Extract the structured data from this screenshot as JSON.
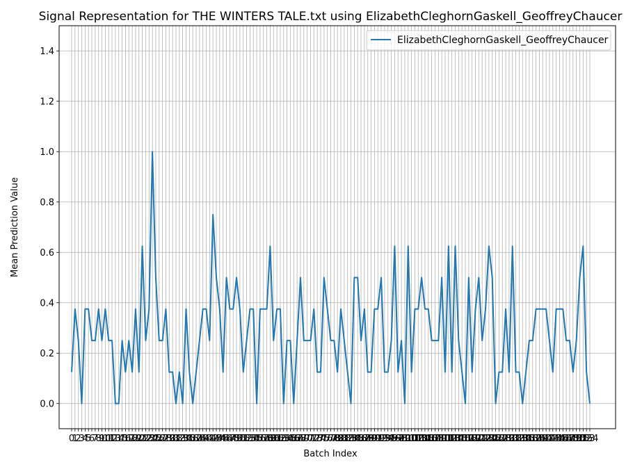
{
  "chart_data": {
    "type": "line",
    "title": "Signal Representation for THE WINTERS TALE.txt using ElizabethCleghornGaskell_GeoffreyChaucer",
    "xlabel": "Batch Index",
    "ylabel": "Mean Prediction Value",
    "ylim": [
      -0.1,
      1.5
    ],
    "yticks": [
      "0.0",
      "0.2",
      "0.4",
      "0.6",
      "0.8",
      "1.0",
      "1.2",
      "1.4"
    ],
    "grid": true,
    "legend_position": "top-right",
    "series": [
      {
        "name": "ElizabethCleghornGaskell_GeoffreyChaucer",
        "color": "#1f77b4",
        "values": [
          0.125,
          0.375,
          0.25,
          0.0,
          0.375,
          0.375,
          0.25,
          0.25,
          0.375,
          0.25,
          0.375,
          0.25,
          0.25,
          0.0,
          0.0,
          0.25,
          0.125,
          0.25,
          0.125,
          0.375,
          0.125,
          0.625,
          0.25,
          0.375,
          1.0,
          0.5,
          0.25,
          0.25,
          0.375,
          0.125,
          0.125,
          0.0,
          0.125,
          0.0,
          0.375,
          0.125,
          0.0,
          0.125,
          0.25,
          0.375,
          0.375,
          0.25,
          0.75,
          0.5,
          0.375,
          0.125,
          0.5,
          0.375,
          0.375,
          0.5,
          0.375,
          0.125,
          0.25,
          0.375,
          0.375,
          0.0,
          0.375,
          0.375,
          0.375,
          0.625,
          0.25,
          0.375,
          0.375,
          0.0,
          0.25,
          0.25,
          0.0,
          0.25,
          0.5,
          0.25,
          0.25,
          0.25,
          0.375,
          0.125,
          0.125,
          0.5,
          0.375,
          0.25,
          0.25,
          0.125,
          0.375,
          0.25,
          0.125,
          0.0,
          0.5,
          0.5,
          0.25,
          0.375,
          0.125,
          0.125,
          0.375,
          0.375,
          0.5,
          0.125,
          0.125,
          0.25,
          0.625,
          0.125,
          0.25,
          0.0,
          0.625,
          0.125,
          0.375,
          0.375,
          0.5,
          0.375,
          0.375,
          0.25,
          0.25,
          0.25,
          0.5,
          0.125,
          0.625,
          0.125,
          0.625,
          0.25,
          0.125,
          0.0,
          0.5,
          0.125,
          0.375,
          0.5,
          0.25,
          0.375,
          0.625,
          0.5,
          0.0,
          0.125,
          0.125,
          0.375,
          0.125,
          0.625,
          0.125,
          0.125,
          0.0,
          0.125,
          0.25,
          0.25,
          0.375,
          0.375,
          0.375,
          0.375,
          0.25,
          0.125,
          0.375,
          0.375,
          0.375,
          0.25,
          0.25,
          0.125,
          0.25,
          0.5,
          0.625,
          0.125,
          0.0
        ]
      }
    ]
  }
}
